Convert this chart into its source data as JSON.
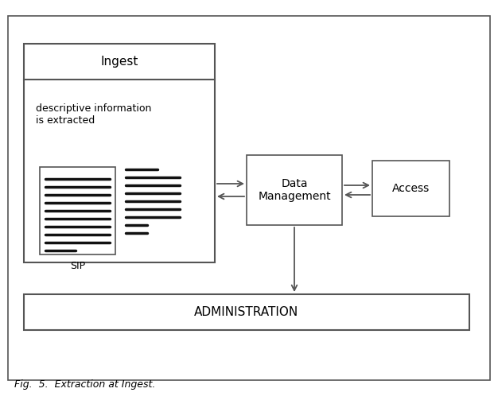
{
  "fig_width": 6.26,
  "fig_height": 5.08,
  "dpi": 100,
  "bg_color": "#ffffff",
  "border_color": "#555555",
  "box_color": "#ffffff",
  "text_color": "#000000",
  "line_color": "#555555",
  "caption": "Fig.  5.  Extraction at Ingest.",
  "ingest_label": "Ingest",
  "desc_label": "descriptive information\nis extracted",
  "sip_label": "SIP",
  "dm_label": "Data\nManagement",
  "access_label": "Access",
  "admin_label": "ADMINISTRATION"
}
